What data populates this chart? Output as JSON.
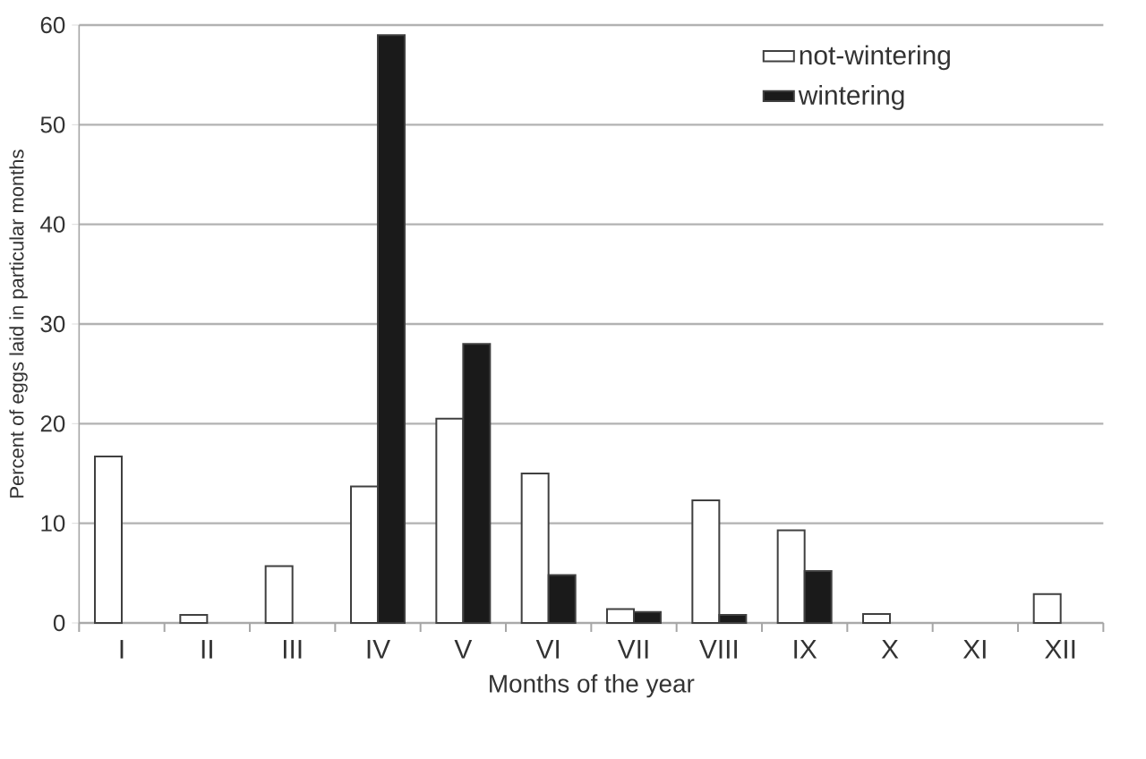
{
  "chart_data": {
    "type": "bar",
    "xlabel": "Months of the year",
    "ylabel": "Percent of eggs laid in particular months",
    "categories": [
      "I",
      "II",
      "III",
      "IV",
      "V",
      "VI",
      "VII",
      "VIII",
      "IX",
      "X",
      "XI",
      "XII"
    ],
    "series": [
      {
        "name": "not-wintering",
        "color": "#ffffff",
        "values": [
          16.7,
          0.8,
          5.7,
          13.7,
          20.5,
          15,
          1.4,
          12.3,
          9.3,
          0.9,
          null,
          2.9
        ]
      },
      {
        "name": "wintering",
        "color": "#1a1a1a",
        "values": [
          null,
          null,
          null,
          59,
          28,
          4.8,
          1.1,
          0.8,
          5.2,
          null,
          null,
          null
        ]
      }
    ],
    "ylim": [
      0,
      60
    ],
    "yticks": [
      0,
      10,
      20,
      30,
      40,
      50,
      60
    ],
    "grid": "y",
    "legend": "top right"
  }
}
